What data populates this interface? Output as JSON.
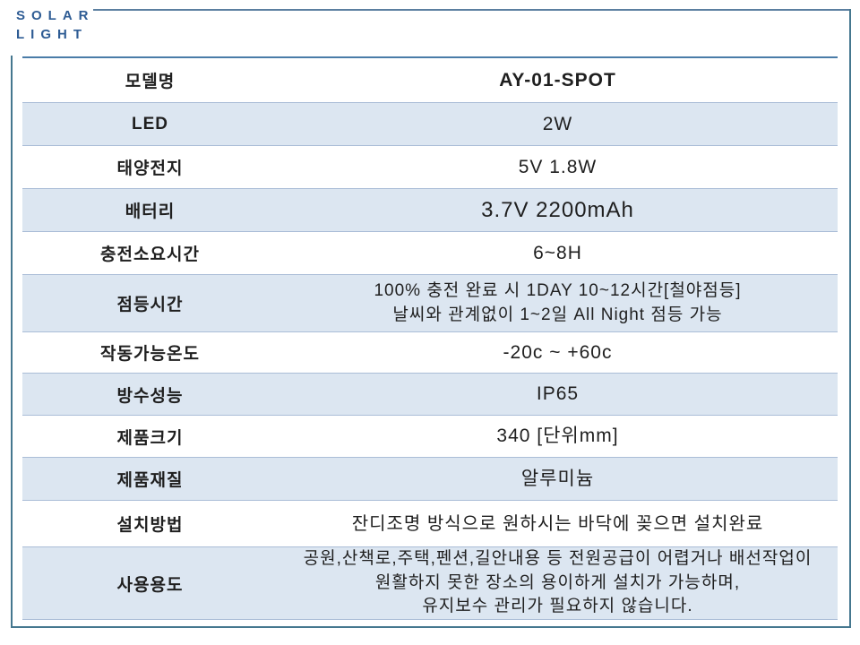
{
  "logo": {
    "line1": "SOLAR",
    "line2": "LIGHT"
  },
  "colors": {
    "logo_blue": "#2e5c94",
    "frame_border": "#45778f",
    "header_rule": "#4a7ca8",
    "row_divider": "#aabdd7",
    "stripe_fill": "#dce6f1",
    "text": "#1f1f1f"
  },
  "table": {
    "rows": [
      {
        "label": "모델명",
        "value_lines": [
          "AY-01-SPOT"
        ]
      },
      {
        "label": "LED",
        "value_lines": [
          "2W"
        ]
      },
      {
        "label": "태양전지",
        "value_lines": [
          "5V 1.8W"
        ]
      },
      {
        "label": "배터리",
        "value_lines": [
          "3.7V 2200mAh"
        ]
      },
      {
        "label": "충전소요시간",
        "value_lines": [
          "6~8H"
        ]
      },
      {
        "label": "점등시간",
        "value_lines": [
          "100% 충전 완료 시 1DAY 10~12시간[철야점등]",
          "날씨와 관계없이 1~2일 All Night 점등 가능"
        ]
      },
      {
        "label": "작동가능온도",
        "value_lines": [
          "-20c ~ +60c"
        ]
      },
      {
        "label": "방수성능",
        "value_lines": [
          "IP65"
        ]
      },
      {
        "label": "제품크기",
        "value_lines": [
          "340 [단위mm]"
        ]
      },
      {
        "label": "제품재질",
        "value_lines": [
          "알루미늄"
        ]
      },
      {
        "label": "설치방법",
        "value_lines": [
          "잔디조명 방식으로 원하시는 바닥에 꽂으면 설치완료"
        ]
      },
      {
        "label": "사용용도",
        "value_lines": [
          "공원,산책로,주택,펜션,길안내용 등 전원공급이 어렵거나 배선작업이",
          "원활하지 못한 장소의 용이하게 설치가 가능하며,",
          "유지보수 관리가 필요하지 않습니다."
        ]
      }
    ]
  }
}
